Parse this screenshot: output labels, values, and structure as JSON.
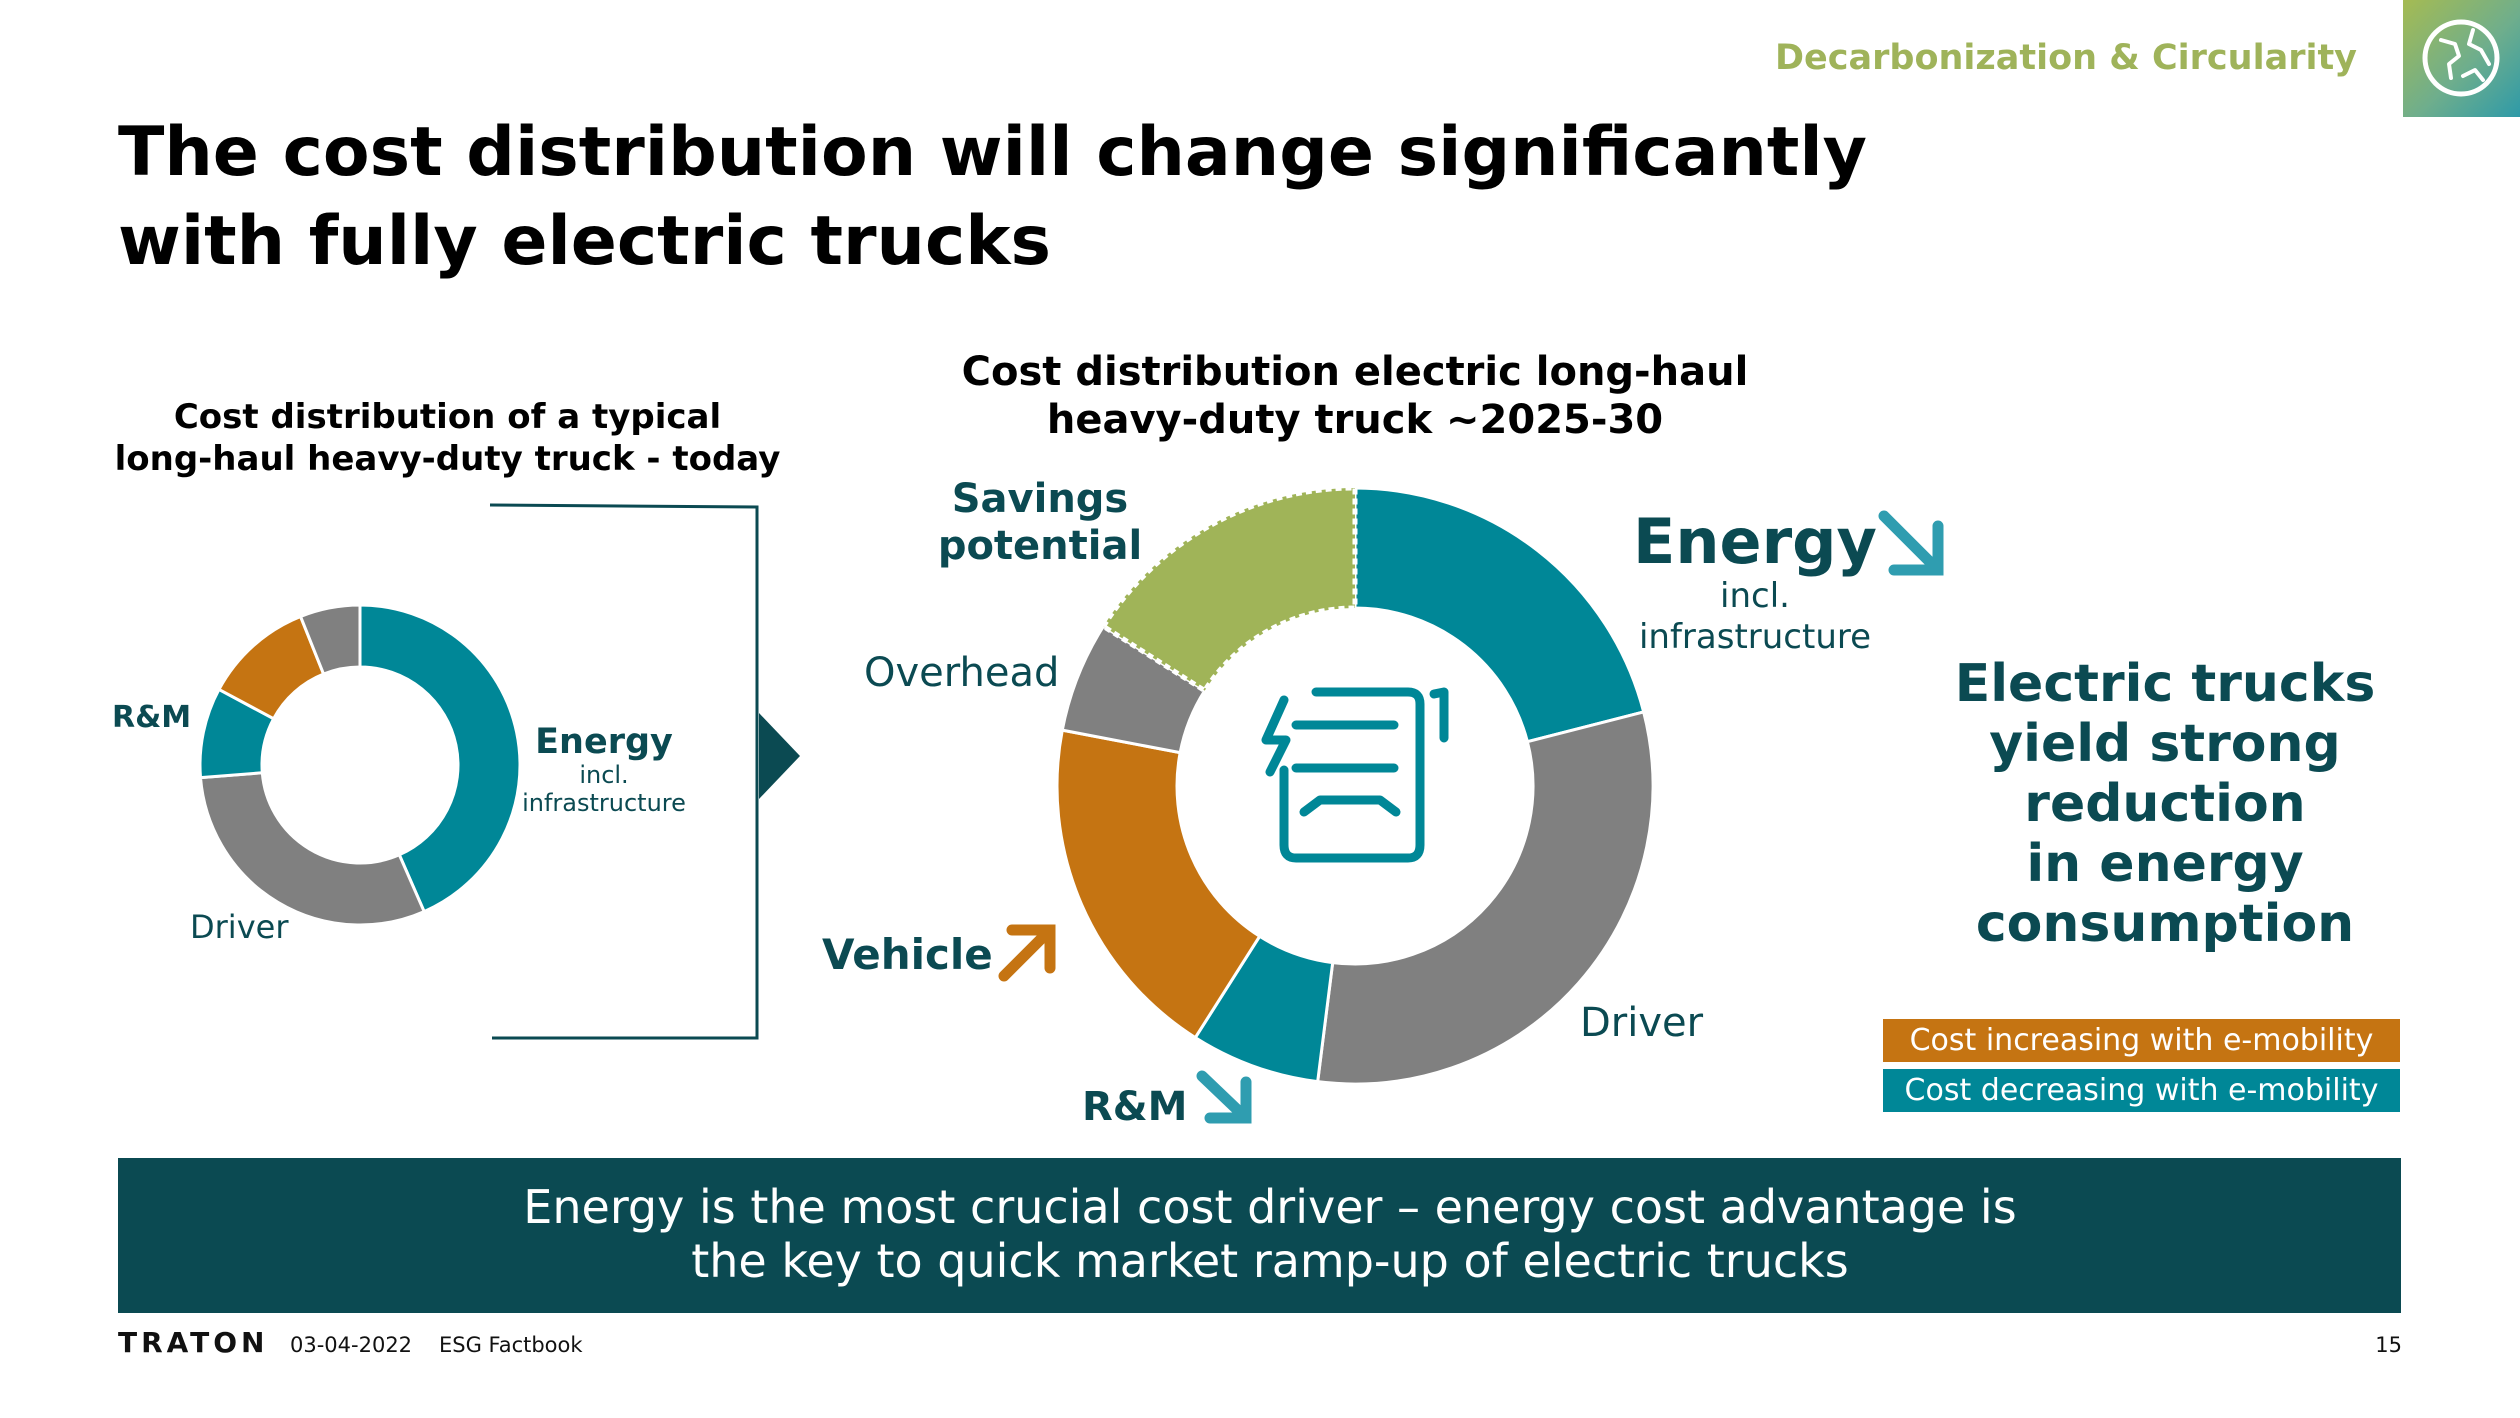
{
  "header": {
    "section": "Decarbonization & Circularity",
    "title_lines": [
      "The cost distribution will change significantly",
      "with fully electric trucks"
    ]
  },
  "chart_data": [
    {
      "type": "pie",
      "title_lines": [
        "Cost distribution of a typical",
        "long-haul heavy-duty truck - today"
      ],
      "categories": [
        "Energy",
        "Driver",
        "R&M",
        "Vehicle",
        "Overhead"
      ],
      "values": [
        43,
        30,
        9,
        11,
        6
      ],
      "colors": [
        "#008797",
        "#808080",
        "#008797",
        "#c57412",
        "#808080"
      ],
      "labels": {
        "energy": "Energy",
        "energy_sub": "incl. infrastructure",
        "rm": "R&M",
        "driver": "Driver"
      }
    },
    {
      "type": "pie",
      "title_lines": [
        "Cost distribution electric long-haul",
        "heavy-duty truck ~2025-30"
      ],
      "categories": [
        "Energy",
        "Driver",
        "R&M",
        "Vehicle",
        "Overhead",
        "Savings potential"
      ],
      "values": [
        21,
        31,
        7,
        19,
        6,
        16
      ],
      "colors": [
        "#008797",
        "#808080",
        "#008797",
        "#c57412",
        "#808080",
        "#a0b458"
      ],
      "labels": {
        "savings": [
          "Savings",
          "potential"
        ],
        "energy": "Energy",
        "energy_sub": [
          "incl.",
          "infrastructure"
        ],
        "overhead": "Overhead",
        "vehicle": "Vehicle",
        "rm": "R&M",
        "driver": "Driver"
      }
    }
  ],
  "statement_lines": [
    "Electric trucks",
    "yield strong",
    "reduction",
    "in energy",
    "consumption"
  ],
  "legend": {
    "increasing": "Cost increasing with e-mobility",
    "decreasing": "Cost decreasing with e-mobility"
  },
  "banner": {
    "lines": [
      "Energy is the most crucial cost driver – energy cost advantage is",
      "the key to quick market ramp-up of electric trucks"
    ]
  },
  "footer": {
    "logo": "TRATON",
    "date": "03-04-2022",
    "doc": "ESG Factbook",
    "page": "15"
  },
  "colors": {
    "teal": "#008797",
    "dark_teal": "#0b4a52",
    "grey": "#808080",
    "orange": "#c57412",
    "green": "#a0b458",
    "section_green": "#9fb35a"
  }
}
